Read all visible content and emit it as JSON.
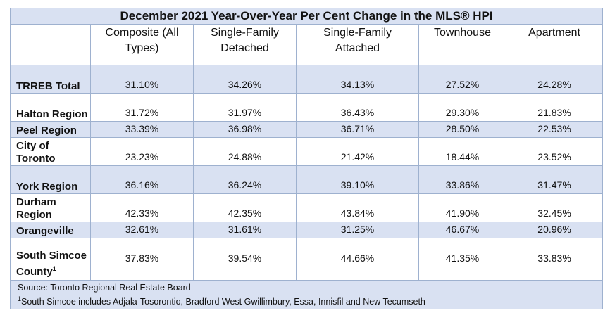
{
  "title": "December 2021 Year-Over-Year Per Cent Change in the MLS® HPI",
  "columns": [
    "Composite (All Types)",
    "Single-Family Detached",
    "Single-Family Attached",
    "Townhouse",
    "Apartment"
  ],
  "rows": [
    {
      "region": "TRREB Total",
      "values": [
        "31.10%",
        "34.26%",
        "34.13%",
        "27.52%",
        "24.28%"
      ]
    },
    {
      "region": "Halton Region",
      "values": [
        "31.72%",
        "31.97%",
        "36.43%",
        "29.30%",
        "21.83%"
      ]
    },
    {
      "region": "Peel Region",
      "values": [
        "33.39%",
        "36.98%",
        "36.71%",
        "28.50%",
        "22.53%"
      ]
    },
    {
      "region": "City of Toronto",
      "values": [
        "23.23%",
        "24.88%",
        "21.42%",
        "18.44%",
        "23.52%"
      ]
    },
    {
      "region": "York Region",
      "values": [
        "36.16%",
        "36.24%",
        "39.10%",
        "33.86%",
        "31.47%"
      ]
    },
    {
      "region": "Durham Region",
      "values": [
        "42.33%",
        "42.35%",
        "43.84%",
        "41.90%",
        "32.45%"
      ]
    },
    {
      "region": "Orangeville",
      "values": [
        "32.61%",
        "31.61%",
        "31.25%",
        "46.67%",
        "20.96%"
      ]
    },
    {
      "region": "South Simcoe County",
      "footnote_mark": "1",
      "values": [
        "37.83%",
        "39.54%",
        "44.66%",
        "41.35%",
        "33.83%"
      ]
    }
  ],
  "footer": {
    "source": "Source: Toronto Regional Real Estate Board",
    "footnote_mark": "1",
    "footnote": "South Simcoe includes Adjala-Tosorontio, Bradford West Gwillimbury, Essa, Innisfil and New Tecumseth"
  },
  "colors": {
    "shade": "#d9e1f2",
    "border": "#9eb1cf"
  }
}
